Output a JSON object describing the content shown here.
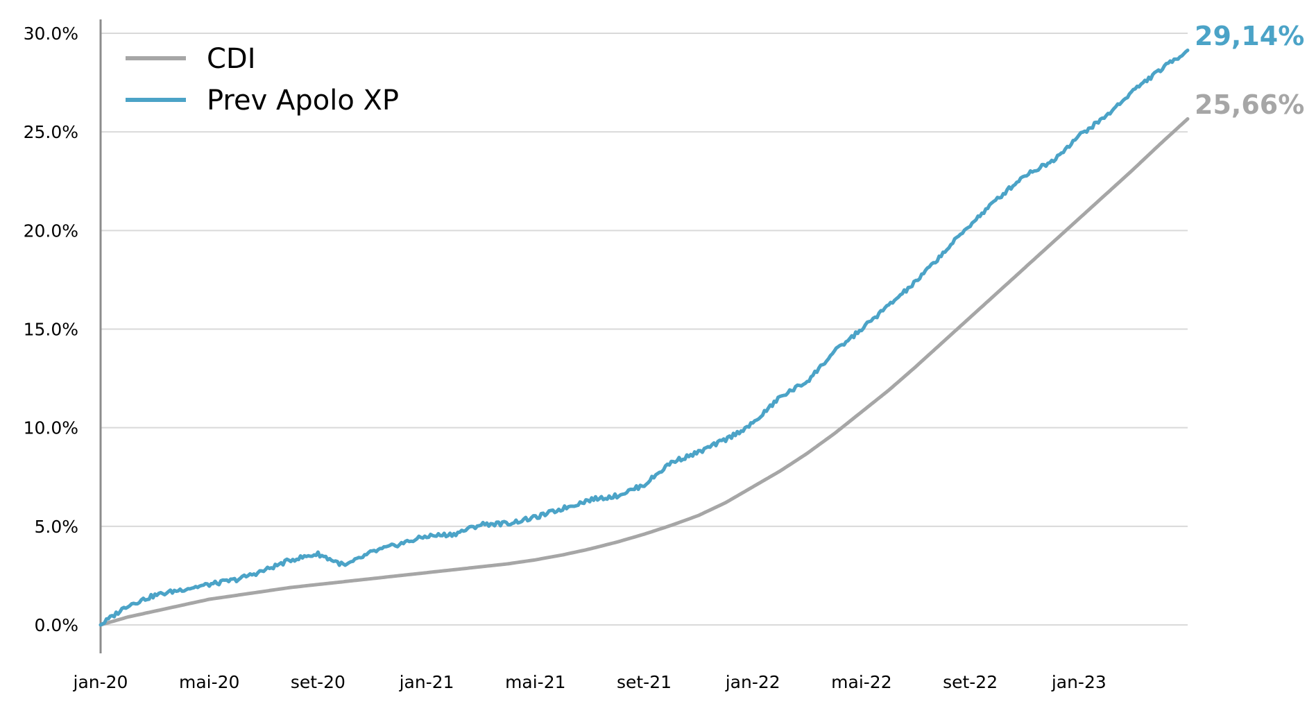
{
  "chart_data": {
    "type": "line",
    "title": "",
    "xlabel": "",
    "ylabel": "",
    "x_tick_labels": [
      "jan-20",
      "mai-20",
      "set-20",
      "jan-21",
      "mai-21",
      "set-21",
      "jan-22",
      "mai-22",
      "set-22",
      "jan-23"
    ],
    "y_tick_labels": [
      "0.0%",
      "5.0%",
      "10.0%",
      "15.0%",
      "20.0%",
      "25.0%",
      "30.0%"
    ],
    "y_ticks": [
      0,
      5,
      10,
      15,
      20,
      25,
      30
    ],
    "ylim": [
      0,
      30
    ],
    "y_unit": "%",
    "grid": "horizontal",
    "legend_position": "top-left",
    "series": [
      {
        "name": "CDI",
        "color": "#a6a6a6",
        "end_label": "25,66%",
        "points": [
          [
            "2020-01",
            0.0
          ],
          [
            "2020-02",
            0.4
          ],
          [
            "2020-03",
            0.7
          ],
          [
            "2020-04",
            1.0
          ],
          [
            "2020-05",
            1.3
          ],
          [
            "2020-06",
            1.5
          ],
          [
            "2020-07",
            1.7
          ],
          [
            "2020-08",
            1.9
          ],
          [
            "2020-09",
            2.05
          ],
          [
            "2020-10",
            2.2
          ],
          [
            "2020-11",
            2.35
          ],
          [
            "2020-12",
            2.5
          ],
          [
            "2021-01",
            2.65
          ],
          [
            "2021-02",
            2.8
          ],
          [
            "2021-03",
            2.95
          ],
          [
            "2021-04",
            3.1
          ],
          [
            "2021-05",
            3.3
          ],
          [
            "2021-06",
            3.55
          ],
          [
            "2021-07",
            3.85
          ],
          [
            "2021-08",
            4.2
          ],
          [
            "2021-09",
            4.6
          ],
          [
            "2021-10",
            5.05
          ],
          [
            "2021-11",
            5.55
          ],
          [
            "2021-12",
            6.2
          ],
          [
            "2022-01",
            7.0
          ],
          [
            "2022-02",
            7.8
          ],
          [
            "2022-03",
            8.7
          ],
          [
            "2022-04",
            9.7
          ],
          [
            "2022-05",
            10.8
          ],
          [
            "2022-06",
            11.9
          ],
          [
            "2022-07",
            13.1
          ],
          [
            "2022-08",
            14.35
          ],
          [
            "2022-09",
            15.6
          ],
          [
            "2022-10",
            16.85
          ],
          [
            "2022-11",
            18.1
          ],
          [
            "2022-12",
            19.35
          ],
          [
            "2023-01",
            20.6
          ],
          [
            "2023-02",
            21.85
          ],
          [
            "2023-03",
            23.1
          ],
          [
            "2023-04",
            24.4
          ],
          [
            "2023-05",
            25.66
          ]
        ]
      },
      {
        "name": "Prev Apolo XP",
        "color": "#4ba3c7",
        "end_label": "29,14%",
        "points": [
          [
            "2020-01",
            0.0
          ],
          [
            "2020-02",
            1.0
          ],
          [
            "2020-03",
            1.5
          ],
          [
            "2020-04",
            1.8
          ],
          [
            "2020-05",
            2.05
          ],
          [
            "2020-06",
            2.3
          ],
          [
            "2020-07",
            2.75
          ],
          [
            "2020-08",
            3.3
          ],
          [
            "2020-09",
            3.6
          ],
          [
            "2020-10",
            3.0
          ],
          [
            "2020-11",
            3.7
          ],
          [
            "2020-12",
            4.1
          ],
          [
            "2021-01",
            4.5
          ],
          [
            "2021-02",
            4.6
          ],
          [
            "2021-03",
            5.1
          ],
          [
            "2021-04",
            5.15
          ],
          [
            "2021-05",
            5.45
          ],
          [
            "2021-06",
            5.9
          ],
          [
            "2021-07",
            6.35
          ],
          [
            "2021-08",
            6.55
          ],
          [
            "2021-09",
            7.1
          ],
          [
            "2021-10",
            8.25
          ],
          [
            "2021-11",
            8.75
          ],
          [
            "2021-12",
            9.4
          ],
          [
            "2022-01",
            10.2
          ],
          [
            "2022-02",
            11.55
          ],
          [
            "2022-03",
            12.35
          ],
          [
            "2022-04",
            13.85
          ],
          [
            "2022-05",
            15.0
          ],
          [
            "2022-06",
            16.2
          ],
          [
            "2022-07",
            17.4
          ],
          [
            "2022-08",
            18.85
          ],
          [
            "2022-09",
            20.3
          ],
          [
            "2022-10",
            21.6
          ],
          [
            "2022-11",
            22.8
          ],
          [
            "2022-12",
            23.5
          ],
          [
            "2023-01",
            24.8
          ],
          [
            "2023-02",
            25.8
          ],
          [
            "2023-03",
            27.1
          ],
          [
            "2023-04",
            28.15
          ],
          [
            "2023-05",
            29.14
          ]
        ]
      }
    ]
  }
}
